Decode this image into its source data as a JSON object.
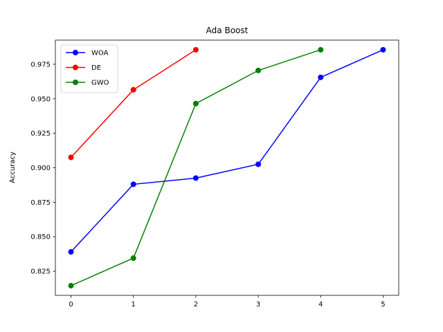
{
  "chart_data": {
    "type": "line",
    "title": "Ada Boost",
    "xlabel": "",
    "ylabel": "Accuracy",
    "xlim": [
      -0.25,
      5.25
    ],
    "ylim": [
      0.8075,
      0.9925
    ],
    "xticks": [
      0,
      1,
      2,
      3,
      4,
      5
    ],
    "xtick_labels": [
      "0",
      "1",
      "2",
      "3",
      "4",
      "5"
    ],
    "yticks": [
      0.825,
      0.85,
      0.875,
      0.9,
      0.925,
      0.95,
      0.975
    ],
    "ytick_labels": [
      "0.825",
      "0.850",
      "0.875",
      "0.900",
      "0.925",
      "0.950",
      "0.975"
    ],
    "grid": false,
    "legend_position": "top-left",
    "series": [
      {
        "name": "WOA",
        "color": "#0000ff",
        "x": [
          0,
          1,
          2,
          3,
          4,
          5
        ],
        "values": [
          0.839,
          0.888,
          0.8925,
          0.9025,
          0.9655,
          0.9855
        ]
      },
      {
        "name": "DE",
        "color": "#ff0000",
        "x": [
          0,
          1,
          2
        ],
        "values": [
          0.9075,
          0.9565,
          0.9855
        ]
      },
      {
        "name": "GWO",
        "color": "#008000",
        "x": [
          0,
          1,
          2,
          3,
          4
        ],
        "values": [
          0.8145,
          0.8345,
          0.9465,
          0.9705,
          0.9855
        ]
      }
    ]
  }
}
